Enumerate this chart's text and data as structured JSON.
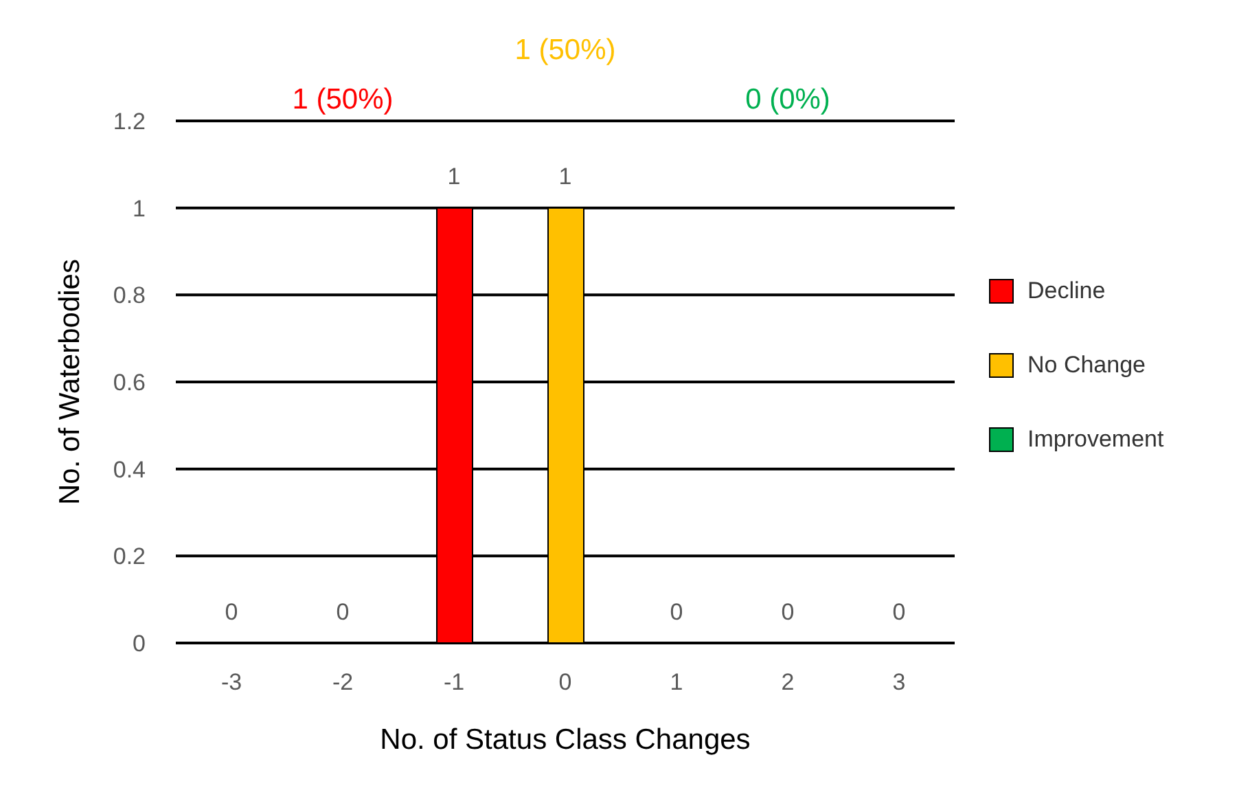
{
  "chart_data": {
    "type": "bar",
    "xlabel": "No. of Status Class Changes",
    "ylabel": "No. of Waterbodies",
    "categories": [
      "-3",
      "-2",
      "-1",
      "0",
      "1",
      "2",
      "3"
    ],
    "series": [
      {
        "name": "Decline",
        "color": "#ff0000",
        "values": [
          0,
          0,
          1,
          null,
          null,
          null,
          null
        ]
      },
      {
        "name": "No Change",
        "color": "#ffc000",
        "values": [
          null,
          null,
          null,
          1,
          null,
          null,
          null
        ]
      },
      {
        "name": "Improvement",
        "color": "#00b050",
        "values": [
          null,
          null,
          null,
          null,
          0,
          0,
          0
        ]
      }
    ],
    "stacked": true,
    "data_labels": true,
    "annotations": [
      "1 (50%)",
      "1 (50%)",
      "0 (0%)"
    ],
    "ylim": [
      0,
      1.2
    ],
    "yticks": [
      0,
      0.2,
      0.4,
      0.6,
      0.8,
      1,
      1.2
    ],
    "grid": "y",
    "legend": "right"
  }
}
